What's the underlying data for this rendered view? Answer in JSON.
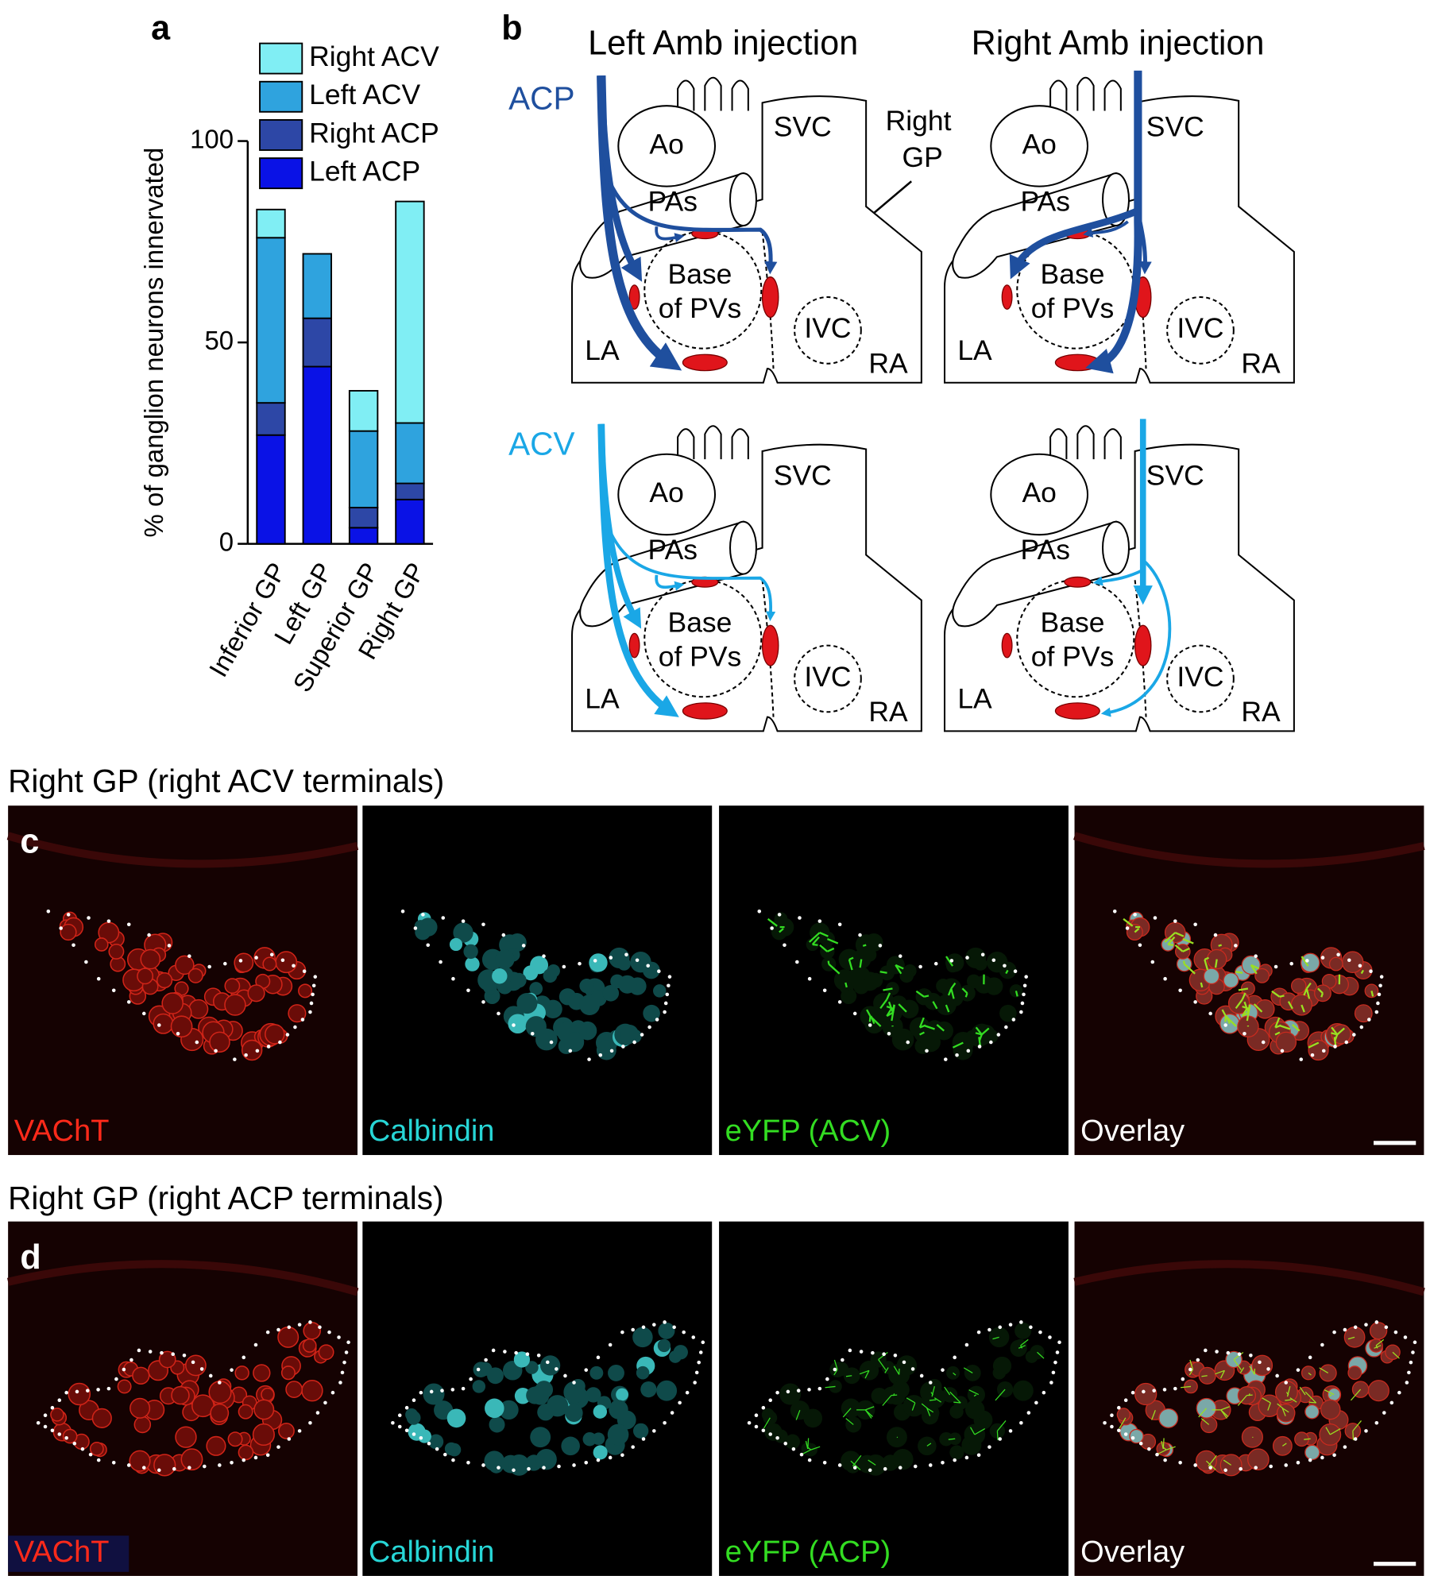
{
  "panel_labels": {
    "a": "a",
    "b": "b",
    "c": "c",
    "d": "d"
  },
  "chart_data": {
    "type": "bar",
    "stacked": true,
    "y_label": "% of ganglion neurons innervated",
    "categories": [
      "Inferior GP",
      "Left GP",
      "Superior GP",
      "Right GP"
    ],
    "series": [
      {
        "name": "Left ACP",
        "color": "#0a12e6",
        "values": [
          27,
          44,
          4,
          11
        ]
      },
      {
        "name": "Right ACP",
        "color": "#2d47a6",
        "values": [
          8,
          12,
          5,
          4
        ]
      },
      {
        "name": "Left ACV",
        "color": "#2fa3de",
        "values": [
          41,
          16,
          19,
          15
        ]
      },
      {
        "name": "Right ACV",
        "color": "#80eef4",
        "values": [
          7,
          0,
          10,
          55
        ]
      }
    ],
    "ylim": [
      0,
      100
    ],
    "yticks": [
      0,
      50,
      100
    ]
  },
  "diagram": {
    "titles": [
      "Left Amb injection",
      "Right Amb injection"
    ],
    "rows": [
      "ACP",
      "ACV"
    ],
    "callout": [
      "Right",
      "GP"
    ],
    "heart_labels": {
      "ao": "Ao",
      "svc": "SVC",
      "pas": "PAs",
      "base": [
        "Base",
        "of PVs"
      ],
      "ivc": "IVC",
      "la": "LA",
      "ra": "RA"
    }
  },
  "micrographs": [
    {
      "title": "Right GP (right ACV terminals)",
      "channels": [
        "VAChT",
        "Calbindin",
        "eYFP (ACV)",
        "Overlay"
      ]
    },
    {
      "title": "Right GP (right ACP terminals)",
      "channels": [
        "VAChT",
        "Calbindin",
        "eYFP (ACP)",
        "Overlay"
      ]
    }
  ]
}
